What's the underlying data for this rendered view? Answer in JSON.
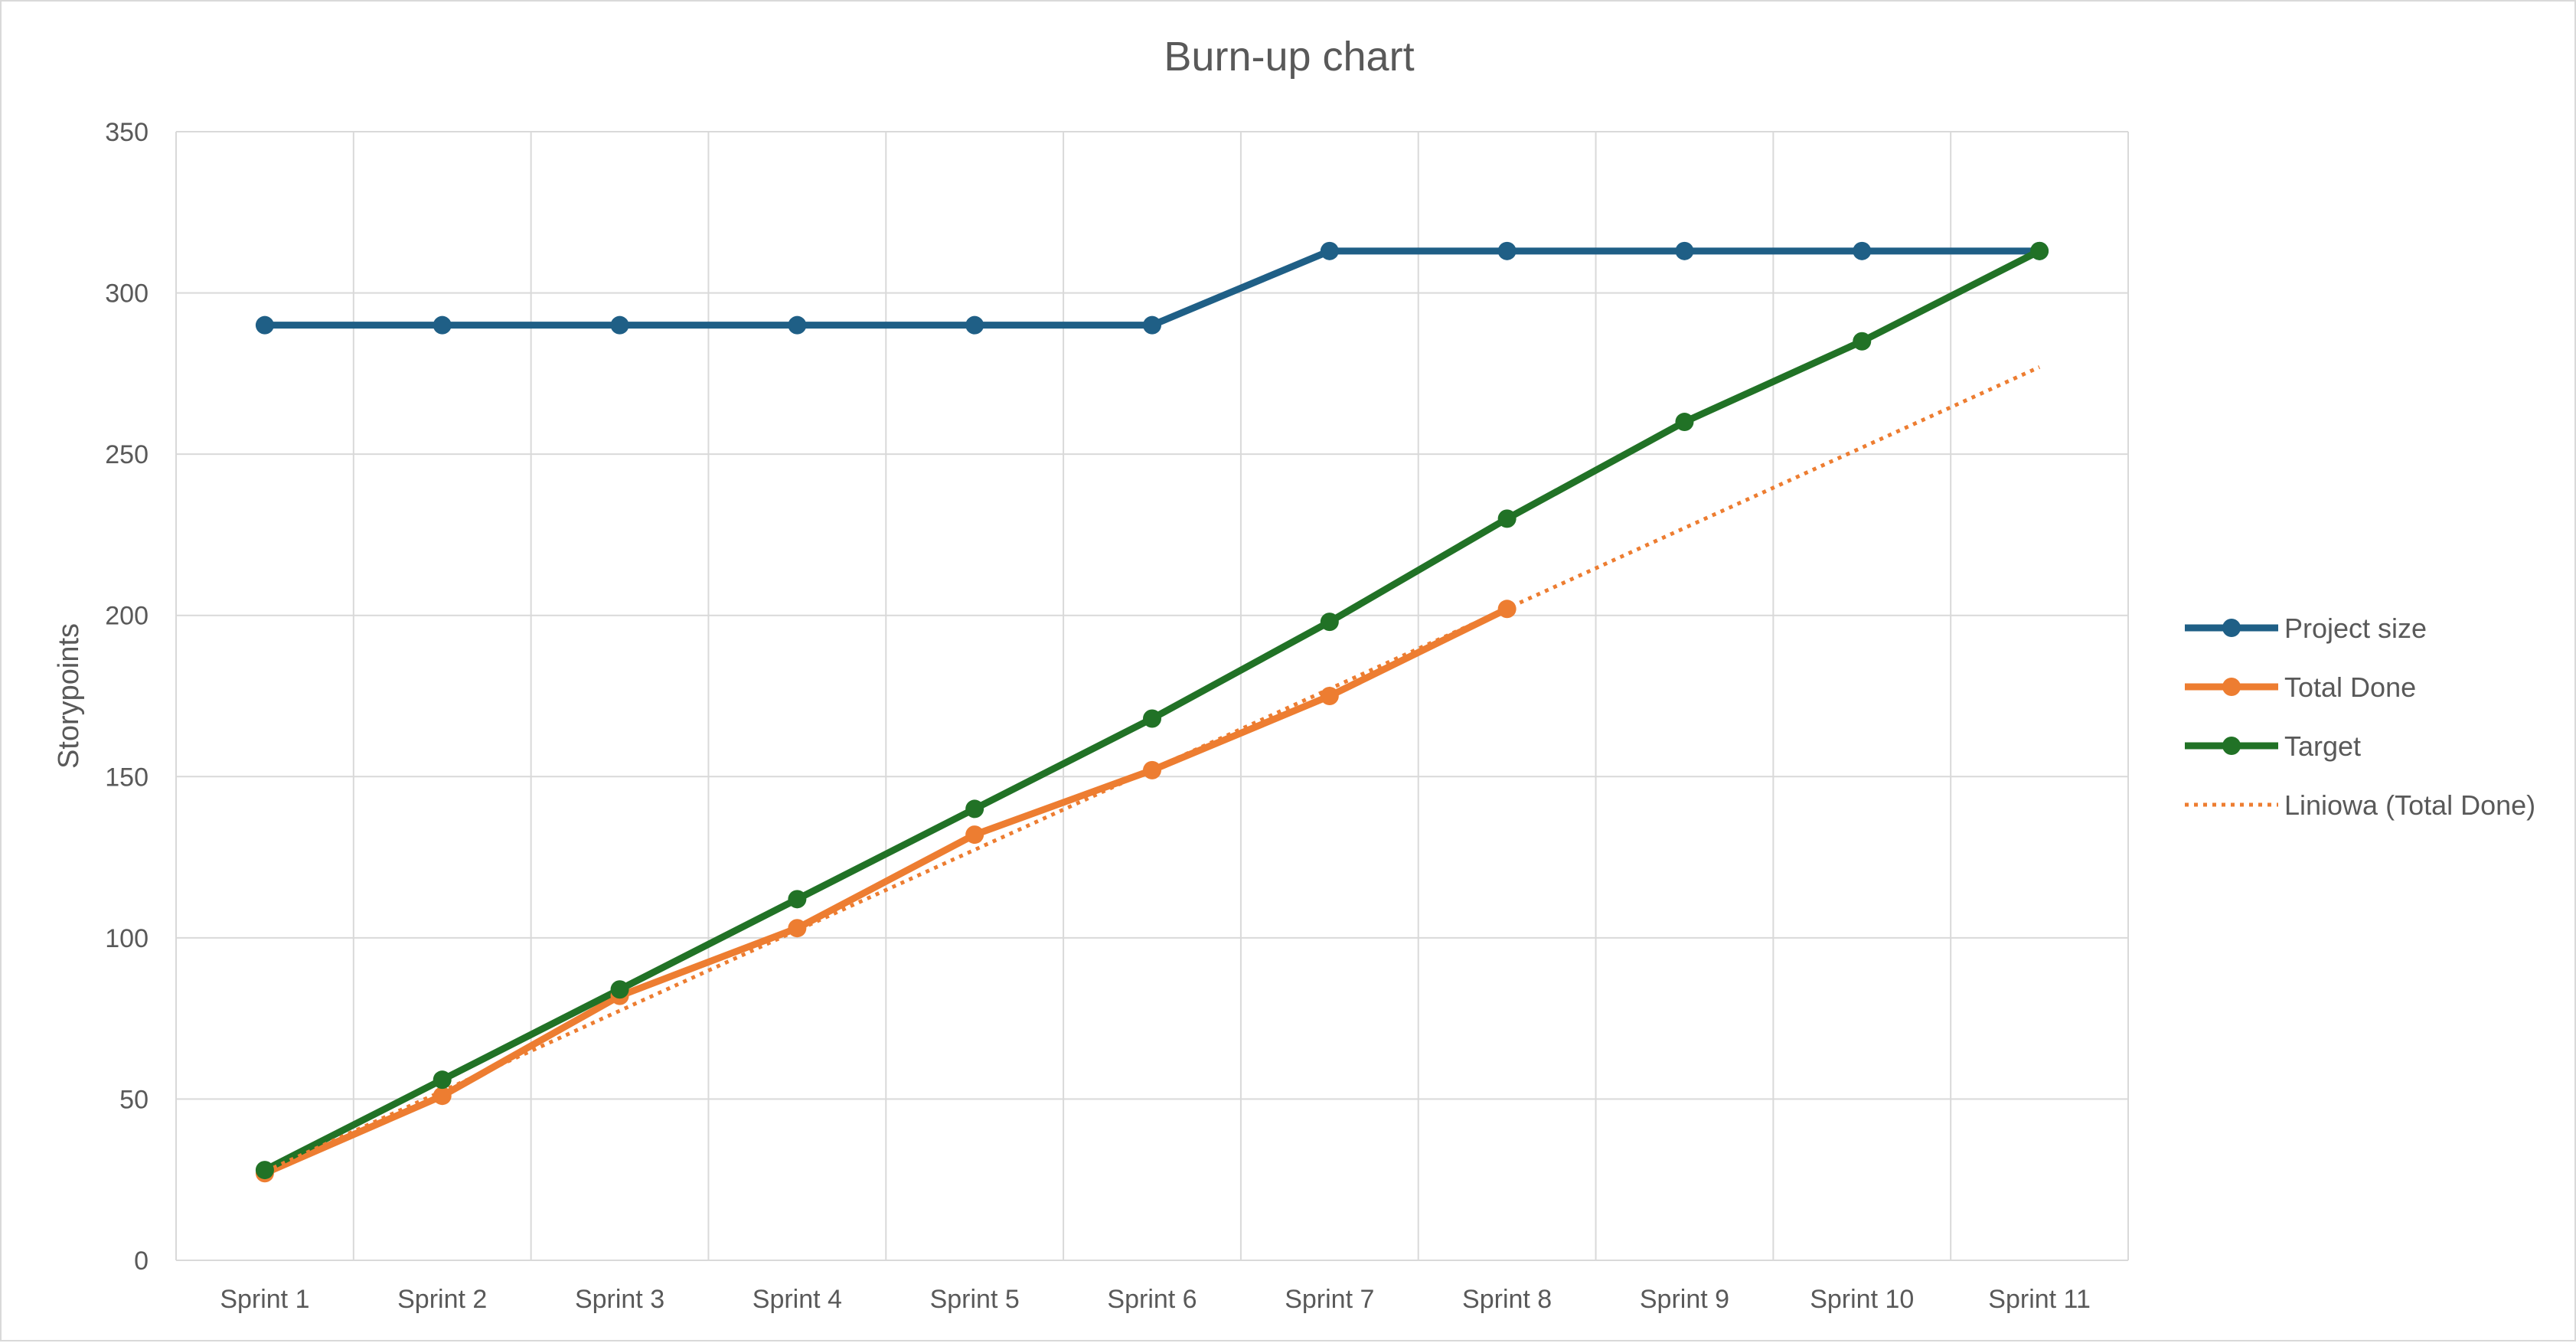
{
  "chart_data": {
    "type": "line",
    "title": "Burn-up chart",
    "ylabel": "Storypoints",
    "xlabel": "",
    "categories": [
      "Sprint 1",
      "Sprint 2",
      "Sprint 3",
      "Sprint 4",
      "Sprint 5",
      "Sprint 6",
      "Sprint 7",
      "Sprint 8",
      "Sprint 9",
      "Sprint 10",
      "Sprint 11"
    ],
    "ylim": [
      0,
      350
    ],
    "yticks": [
      0,
      50,
      100,
      150,
      200,
      250,
      300,
      350
    ],
    "grid": true,
    "legend_position": "right",
    "series": [
      {
        "name": "Project size",
        "color": "#1f5f86",
        "style": "solid-markers",
        "values": [
          290,
          290,
          290,
          290,
          290,
          290,
          313,
          313,
          313,
          313,
          313
        ]
      },
      {
        "name": "Total Done",
        "color": "#ed7d31",
        "style": "solid-markers",
        "values": [
          27,
          51,
          82,
          103,
          132,
          152,
          175,
          202,
          null,
          null,
          null
        ]
      },
      {
        "name": "Target",
        "color": "#217226",
        "style": "solid-markers",
        "values": [
          28,
          56,
          84,
          112,
          140,
          168,
          198,
          230,
          260,
          285,
          313
        ]
      },
      {
        "name": "Liniowa (Total Done)",
        "color": "#ed7d31",
        "style": "dotted",
        "trend": {
          "x_start": 1,
          "x_end": 11,
          "y_start": 27.5,
          "y_end": 277
        }
      }
    ]
  }
}
